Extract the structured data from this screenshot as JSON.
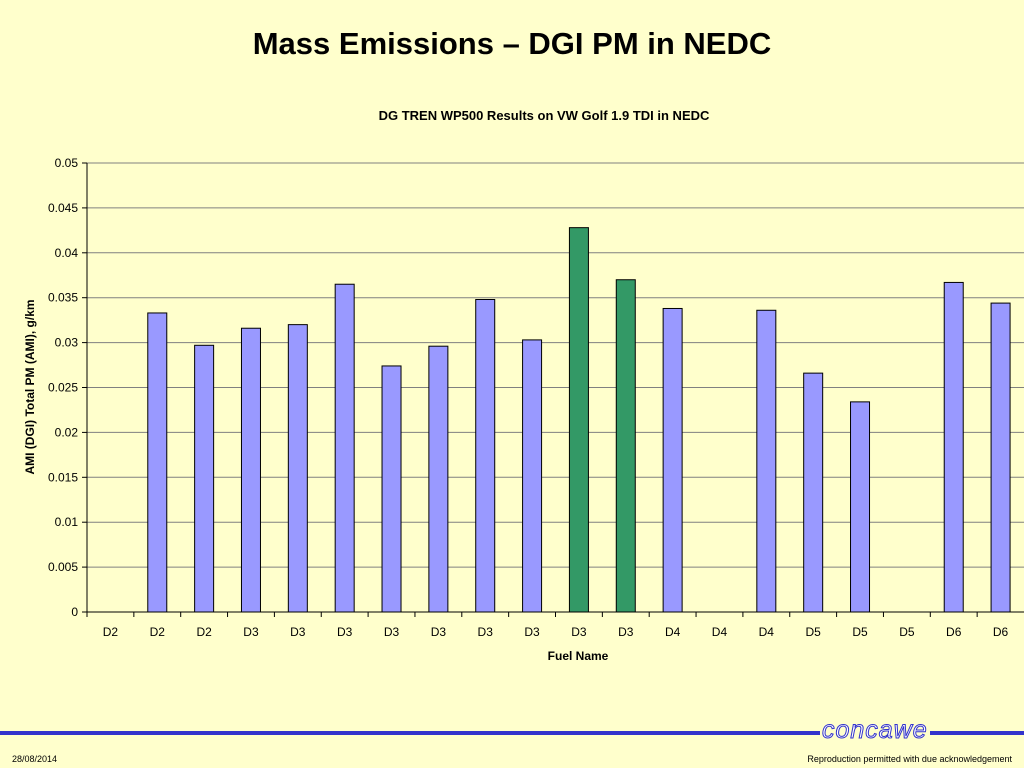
{
  "slide": {
    "title": "Mass Emissions – DGI PM in NEDC",
    "date": "28/08/2014",
    "footer_note": "Reproduction permitted with due acknowledgement",
    "logo_text": "concawe"
  },
  "colors": {
    "background": "#ffffcc",
    "bar_default": "#9999ff",
    "bar_highlight": "#339966",
    "footer_rule": "#3333cc"
  },
  "chart_data": {
    "type": "bar",
    "title": "DG TREN WP500 Results on VW Golf 1.9 TDI in NEDC",
    "xlabel": "Fuel Name",
    "ylabel": "AMI (DGI) Total PM (AMI), g/km",
    "ylim": [
      0,
      0.05
    ],
    "yticks": [
      "0",
      "0.005",
      "0.01",
      "0.015",
      "0.02",
      "0.025",
      "0.03",
      "0.035",
      "0.04",
      "0.045",
      "0.05"
    ],
    "grid": true,
    "categories": [
      "D2",
      "D2",
      "D2",
      "D3",
      "D3",
      "D3",
      "D3",
      "D3",
      "D3",
      "D3",
      "D3",
      "D3",
      "D4",
      "D4",
      "D4",
      "D5",
      "D5",
      "D5",
      "D6",
      "D6"
    ],
    "values": [
      null,
      0.0333,
      0.0297,
      0.0316,
      0.032,
      0.0365,
      0.0274,
      0.0296,
      0.0348,
      0.0303,
      0.0428,
      0.037,
      0.0338,
      null,
      0.0336,
      0.0266,
      0.0234,
      null,
      0.0367,
      0.0344
    ],
    "highlighted_indices": [
      10,
      11
    ]
  }
}
